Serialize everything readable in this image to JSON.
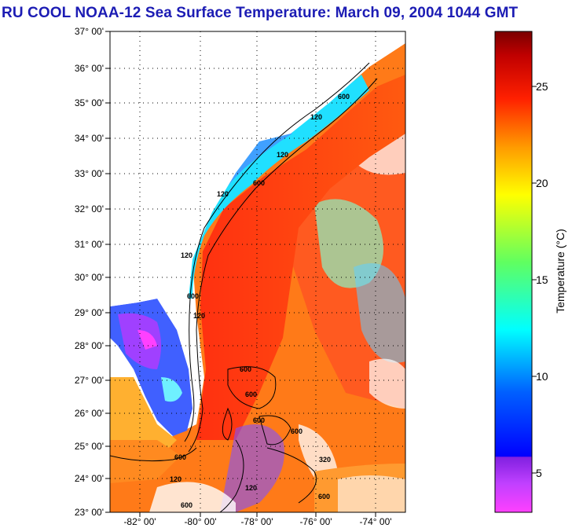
{
  "header": {
    "title": "RU COOL  NOAA-12  Sea Surface Temperature:  March 09, 2004 1044 GMT"
  },
  "map": {
    "lat_ticks": [
      "37° 00'",
      "36° 00'",
      "35° 00'",
      "34° 00'",
      "33° 00'",
      "32° 00'",
      "31° 00'",
      "30° 00'",
      "29° 00'",
      "28° 00'",
      "27° 00'",
      "26° 00'",
      "25° 00'",
      "24° 00'",
      "23° 00'"
    ],
    "lon_ticks": [
      "-82° 00'",
      "-80° 00'",
      "-78° 00'",
      "-76° 00'",
      "-74° 00'"
    ],
    "contour_labels": [
      "600",
      "120",
      "120",
      "600",
      "120",
      "600",
      "120",
      "600",
      "600",
      "600",
      "600",
      "600",
      "120",
      "600",
      "320",
      "120",
      "120",
      "600"
    ]
  },
  "colorbar": {
    "ticks": [
      "25",
      "20",
      "15",
      "10",
      "5"
    ],
    "label": "Temperature (°C)",
    "colors": {
      "dark_red": "#8b0000",
      "red": "#ff2000",
      "orange": "#ff8c00",
      "yellow": "#ffff00",
      "green": "#40ff60",
      "cyan": "#00ffff",
      "blue": "#0000ff",
      "purple": "#8020e0",
      "magenta": "#ff40ff"
    }
  }
}
